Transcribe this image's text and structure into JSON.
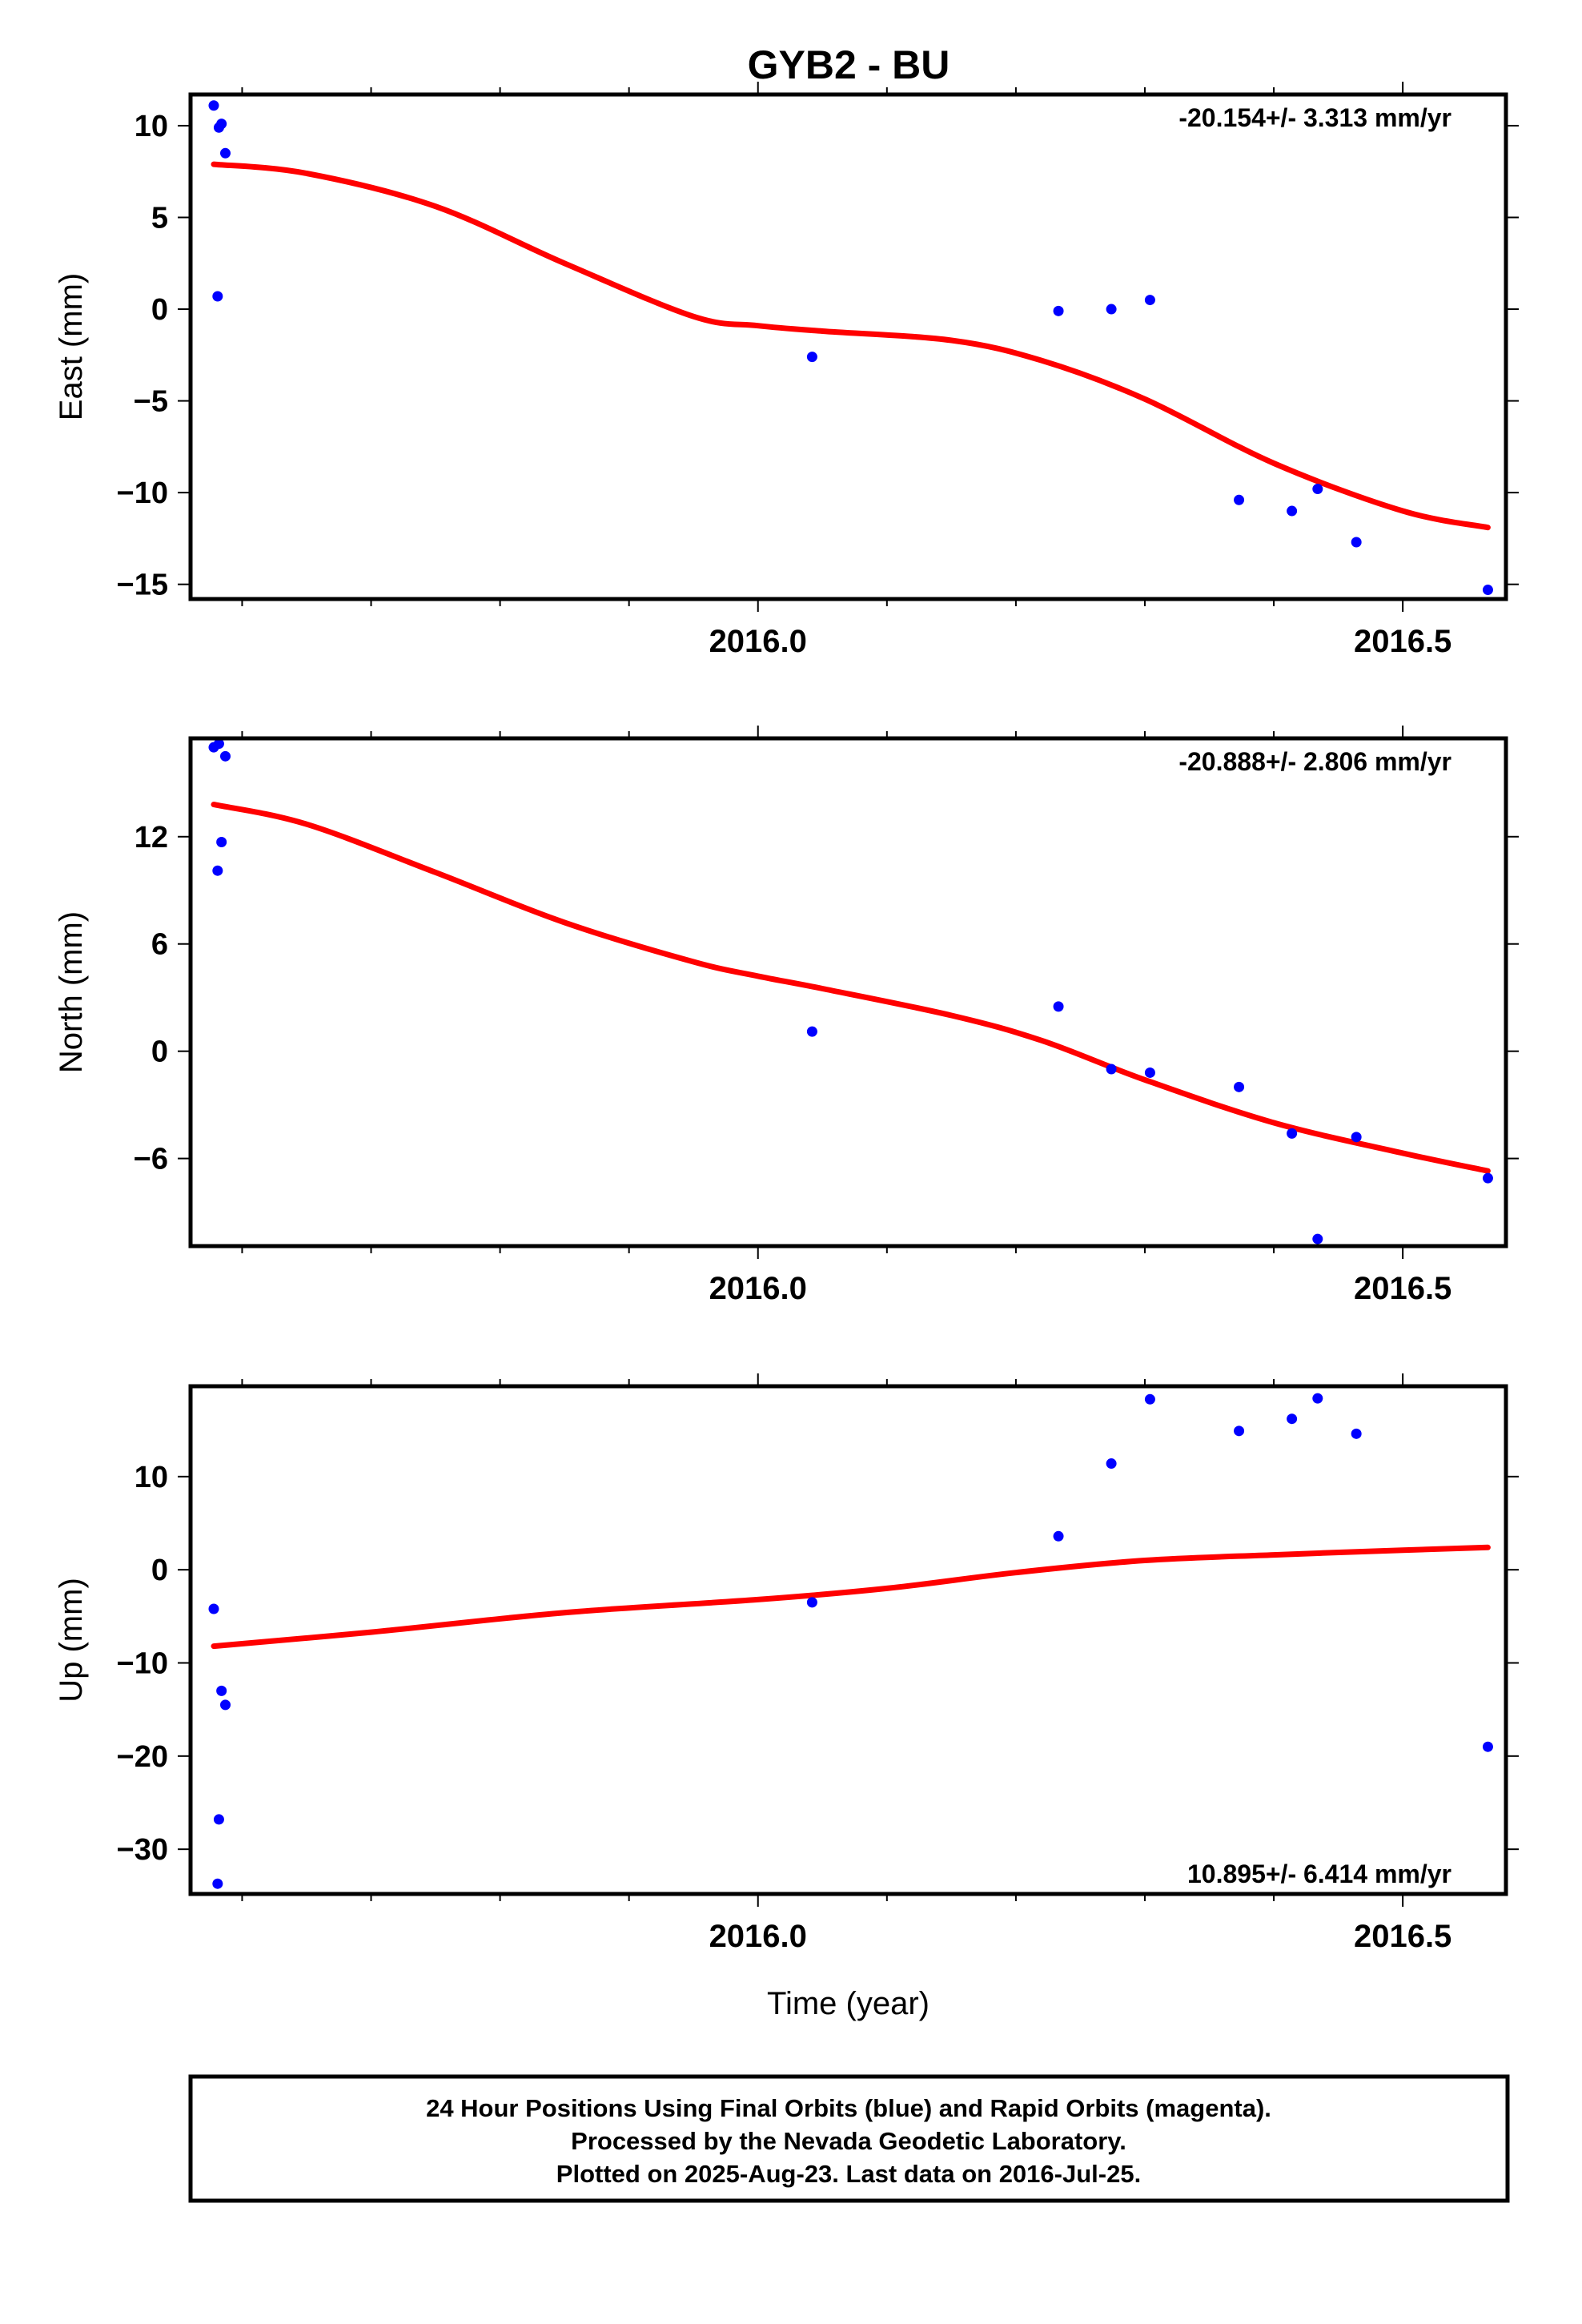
{
  "title": "GYB2 - BU",
  "colors": {
    "final_orbits": "#0000ff",
    "fit": "#ff0000",
    "frame": "#000000"
  },
  "chart_data": [
    {
      "type": "scatter",
      "panel": "east",
      "ylabel": "East (mm)",
      "xlabel": "",
      "rate_text": "-20.154+/- 3.313 mm/yr",
      "rate_position": "top-right",
      "xlim": [
        2015.56,
        2016.58
      ],
      "ylim": [
        -15.8,
        11.7
      ],
      "x_ticks": [
        2016.0,
        2016.5
      ],
      "x_tick_labels": [
        "2016.0",
        "2016.5"
      ],
      "y_ticks": [
        10,
        5,
        0,
        -5,
        -10,
        -15
      ],
      "y_tick_labels": [
        "10",
        "5",
        "0",
        "−5",
        "−10",
        "−15"
      ],
      "points": {
        "x": [
          2015.578,
          2015.581,
          2015.582,
          2015.584,
          2015.587,
          2016.042,
          2016.233,
          2016.274,
          2016.304,
          2016.373,
          2016.414,
          2016.434,
          2016.464,
          2016.566
        ],
        "y": [
          11.1,
          0.7,
          9.9,
          10.1,
          8.5,
          -2.6,
          -0.1,
          0.0,
          0.5,
          -10.4,
          -11.0,
          -9.8,
          -12.7,
          -15.3
        ]
      },
      "fit": {
        "x": [
          2015.578,
          2015.65,
          2015.75,
          2015.85,
          2015.95,
          2016.0,
          2016.05,
          2016.15,
          2016.22,
          2016.3,
          2016.4,
          2016.5,
          2016.566
        ],
        "y": [
          7.9,
          7.4,
          5.6,
          2.5,
          -0.4,
          -0.9,
          -1.2,
          -1.7,
          -2.8,
          -4.9,
          -8.4,
          -11.0,
          -11.9
        ]
      }
    },
    {
      "type": "scatter",
      "panel": "north",
      "ylabel": "North (mm)",
      "xlabel": "",
      "rate_text": "-20.888+/- 2.806 mm/yr",
      "rate_position": "top-right",
      "xlim": [
        2015.56,
        2016.58
      ],
      "ylim": [
        -10.9,
        17.5
      ],
      "x_ticks": [
        2016.0,
        2016.5
      ],
      "x_tick_labels": [
        "2016.0",
        "2016.5"
      ],
      "y_ticks": [
        12,
        6,
        0,
        -6
      ],
      "y_tick_labels": [
        "12",
        "6",
        "0",
        "−6"
      ],
      "points": {
        "x": [
          2015.578,
          2015.581,
          2015.582,
          2015.584,
          2015.587,
          2016.042,
          2016.233,
          2016.274,
          2016.304,
          2016.373,
          2016.414,
          2016.434,
          2016.464,
          2016.566
        ],
        "y": [
          17.0,
          10.1,
          17.2,
          11.7,
          16.5,
          1.1,
          2.5,
          -1.0,
          -1.2,
          -2.0,
          -4.6,
          -10.5,
          -4.8,
          -7.1
        ]
      },
      "fit": {
        "x": [
          2015.578,
          2015.65,
          2015.75,
          2015.85,
          2015.95,
          2016.0,
          2016.05,
          2016.15,
          2016.22,
          2016.3,
          2016.4,
          2016.5,
          2016.566
        ],
        "y": [
          13.8,
          12.7,
          10.0,
          7.2,
          5.0,
          4.2,
          3.5,
          2.0,
          0.6,
          -1.6,
          -4.0,
          -5.7,
          -6.7
        ]
      }
    },
    {
      "type": "scatter",
      "panel": "up",
      "ylabel": "Up (mm)",
      "xlabel": "Time (year)",
      "rate_text": "10.895+/- 6.414 mm/yr",
      "rate_position": "bottom-right",
      "xlim": [
        2015.56,
        2016.58
      ],
      "ylim": [
        -34.8,
        19.7
      ],
      "x_ticks": [
        2016.0,
        2016.5
      ],
      "x_tick_labels": [
        "2016.0",
        "2016.5"
      ],
      "y_ticks": [
        10,
        0,
        -10,
        -20,
        -30
      ],
      "y_tick_labels": [
        "10",
        "0",
        "−10",
        "−20",
        "−30"
      ],
      "points": {
        "x": [
          2015.578,
          2015.581,
          2015.582,
          2015.584,
          2015.587,
          2016.042,
          2016.233,
          2016.274,
          2016.304,
          2016.373,
          2016.414,
          2016.434,
          2016.464,
          2016.566
        ],
        "y": [
          -4.2,
          -33.7,
          -26.8,
          -13.0,
          -14.5,
          -3.5,
          3.6,
          11.4,
          18.3,
          14.9,
          16.2,
          18.4,
          14.6,
          -19.0
        ]
      },
      "fit": {
        "x": [
          2015.578,
          2015.7,
          2015.85,
          2016.0,
          2016.1,
          2016.2,
          2016.3,
          2016.4,
          2016.5,
          2016.566
        ],
        "y": [
          -8.2,
          -6.7,
          -4.6,
          -3.2,
          -2.0,
          -0.3,
          1.0,
          1.6,
          2.1,
          2.4
        ]
      }
    }
  ],
  "caption": {
    "line1": "24 Hour Positions Using Final Orbits (blue) and Rapid Orbits (magenta).",
    "line2": "Processed by the Nevada Geodetic Laboratory.",
    "line3": "Plotted on 2025-Aug-23. Last data on 2016-Jul-25."
  }
}
